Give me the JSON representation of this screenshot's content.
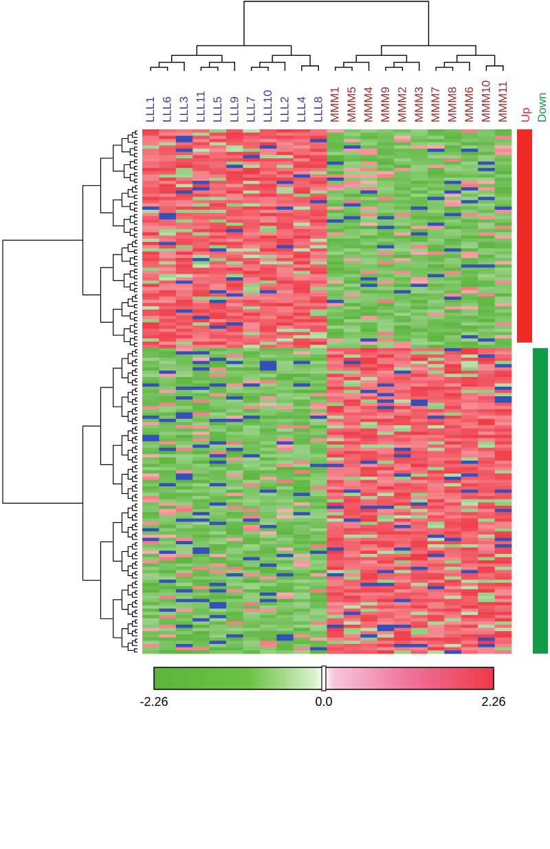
{
  "chart_data": {
    "type": "heatmap",
    "title": "",
    "columns": [
      "LLL1",
      "LLL6",
      "LLL3",
      "LLL11",
      "LLL5",
      "LLL9",
      "LLL7",
      "LLL10",
      "LLL2",
      "LLL4",
      "LLL8",
      "MMM1",
      "MMM5",
      "MMM4",
      "MMM9",
      "MMM2",
      "MMM3",
      "MMM7",
      "MMM8",
      "MMM6",
      "MMM10",
      "MMM11"
    ],
    "column_groups": [
      {
        "name": "LLL",
        "count": 11,
        "color": "#3b3a9a"
      },
      {
        "name": "MMM",
        "count": 11,
        "color": "#9b2a2a"
      }
    ],
    "row_groups": [
      {
        "label": "Up",
        "rows": 68,
        "color": "#ee2a24"
      },
      {
        "label": "Down",
        "rows": 95,
        "color": "#0f9b48"
      }
    ],
    "colorbar": {
      "min": -2.26,
      "mid": 0.0,
      "max": 2.26,
      "tick_labels": [
        "-2.26",
        "0.0",
        "2.26"
      ],
      "low_color": "#5ab53c",
      "mid_color": "#ffffff",
      "high_color": "#ee3a46",
      "missing_color": "#3550b8"
    },
    "value_range": [
      -2.26,
      2.26
    ],
    "dendrograms": {
      "columns": true,
      "rows": true
    },
    "legend_placement": "right"
  }
}
